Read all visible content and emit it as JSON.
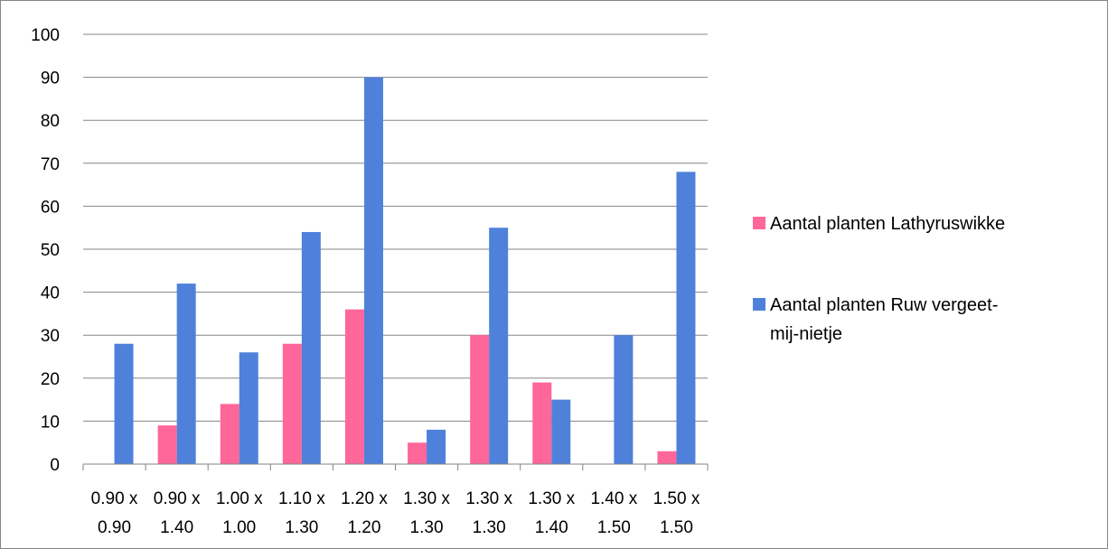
{
  "chart_data": {
    "type": "bar",
    "title": "",
    "xlabel": "",
    "ylabel": "",
    "ylim": [
      0,
      100
    ],
    "yticks": [
      0,
      10,
      20,
      30,
      40,
      50,
      60,
      70,
      80,
      90,
      100
    ],
    "ytick_labels": [
      "0",
      "10",
      "20",
      "30",
      "40",
      "50",
      "60",
      "70",
      "80",
      "90",
      "100"
    ],
    "grid": true,
    "legend_position": "right",
    "categories": [
      [
        "0.90 x",
        "0.90"
      ],
      [
        "0.90 x",
        "1.40"
      ],
      [
        "1.00 x",
        "1.00"
      ],
      [
        "1.10 x",
        "1.30"
      ],
      [
        "1.20 x",
        "1.20"
      ],
      [
        "1.30 x",
        "1.30"
      ],
      [
        "1.30 x",
        "1.30"
      ],
      [
        "1.30 x",
        "1.40"
      ],
      [
        "1.40 x",
        "1.50"
      ],
      [
        "1.50 x",
        "1.50"
      ]
    ],
    "series": [
      {
        "name": "Aantal planten Lathyruswikke",
        "legend_lines": [
          "Aantal planten Lathyruswikke"
        ],
        "color": "#ff6699",
        "values": [
          0,
          9,
          14,
          28,
          36,
          5,
          30,
          19,
          0,
          3
        ]
      },
      {
        "name": "Aantal planten Ruw vergeet-mij-nietje",
        "legend_lines": [
          "Aantal planten Ruw vergeet-",
          "mij-nietje"
        ],
        "color": "#4f81db",
        "values": [
          28,
          42,
          26,
          54,
          90,
          8,
          55,
          15,
          30,
          68
        ]
      }
    ]
  }
}
